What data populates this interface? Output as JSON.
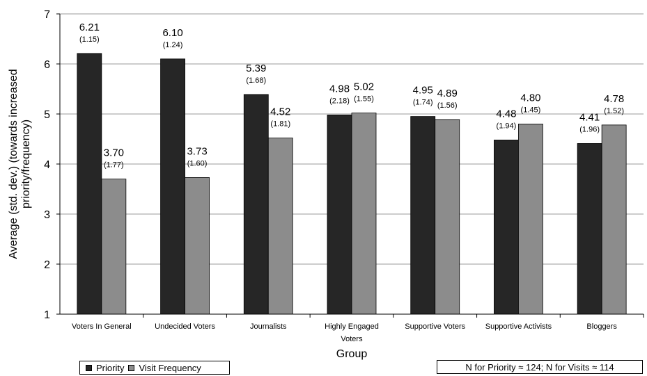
{
  "chart_data": {
    "type": "bar",
    "title": "",
    "xlabel": "Group",
    "ylabel": "Average  (std. dev.) (towards increased priority/frequency)",
    "ylabel_lines": [
      "Average  (std. dev.) (towards increased",
      "priority/frequency)"
    ],
    "ylim": [
      1,
      7
    ],
    "yticks": [
      "1",
      "2",
      "3",
      "4",
      "5",
      "6",
      "7"
    ],
    "grid": true,
    "categories": [
      [
        "Voters In General"
      ],
      [
        "Undecided Voters"
      ],
      [
        "Journalists"
      ],
      [
        "Highly Engaged",
        "Voters"
      ],
      [
        "Supportive Voters"
      ],
      [
        "Supportive Activists"
      ],
      [
        "Bloggers"
      ]
    ],
    "series": [
      {
        "name": "Priority",
        "color": "#262626",
        "values": [
          6.21,
          6.1,
          5.39,
          4.98,
          4.95,
          4.48,
          4.41
        ],
        "labels": [
          "6.21",
          "6.10",
          "5.39",
          "4.98",
          "4.95",
          "4.48",
          "4.41"
        ],
        "sd": [
          "(1.15)",
          "(1.24)",
          "(1.68)",
          "(2.18)",
          "(1.74)",
          "(1.94)",
          "(1.96)"
        ]
      },
      {
        "name": "Visit Frequency",
        "color": "#8c8c8c",
        "values": [
          3.7,
          3.73,
          4.52,
          5.02,
          4.89,
          4.8,
          4.78
        ],
        "labels": [
          "3.70",
          "3.73",
          "4.52",
          "5.02",
          "4.89",
          "4.80",
          "4.78"
        ],
        "sd": [
          "(1.77)",
          "(1.60)",
          "(1.81)",
          "(1.55)",
          "(1.56)",
          "(1.45)",
          "(1.52)"
        ]
      }
    ],
    "legend_position": "bottom-left",
    "note": "N for Priority ≈ 124; N for Visits ≈ 114"
  }
}
